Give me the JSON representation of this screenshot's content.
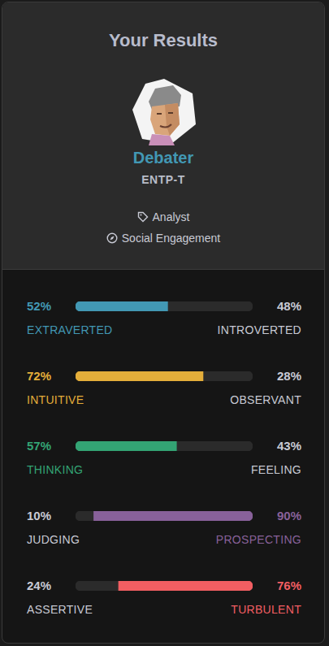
{
  "header": {
    "title": "Your Results",
    "type_name": "Debater",
    "type_code": "ENTP-T",
    "role": "Analyst",
    "strategy": "Social Engagement"
  },
  "chart_data": [
    {
      "type": "bar",
      "orientation": "horizontal",
      "stacked": true,
      "grid": false,
      "tick_labels": false,
      "categories": [
        null
      ],
      "xlim": [
        0,
        100
      ],
      "series": [
        {
          "name": "EXTRAVERTED",
          "color": "#4298b4",
          "values": [
            52
          ],
          "value_labels": [
            "52%"
          ]
        },
        {
          "name": "INTROVERTED",
          "color": "#2b2b2b",
          "values": [
            48
          ],
          "value_labels": [
            "48%"
          ]
        }
      ]
    },
    {
      "type": "bar",
      "orientation": "horizontal",
      "stacked": true,
      "grid": false,
      "tick_labels": false,
      "categories": [
        null
      ],
      "xlim": [
        0,
        100
      ],
      "series": [
        {
          "name": "INTUITIVE",
          "color": "#e4ae3a",
          "values": [
            72
          ],
          "value_labels": [
            "72%"
          ]
        },
        {
          "name": "OBSERVANT",
          "color": "#2b2b2b",
          "values": [
            28
          ],
          "value_labels": [
            "28%"
          ]
        }
      ]
    },
    {
      "type": "bar",
      "orientation": "horizontal",
      "stacked": true,
      "grid": false,
      "tick_labels": false,
      "categories": [
        null
      ],
      "xlim": [
        0,
        100
      ],
      "series": [
        {
          "name": "THINKING",
          "color": "#33a474",
          "values": [
            57
          ],
          "value_labels": [
            "57%"
          ]
        },
        {
          "name": "FEELING",
          "color": "#2b2b2b",
          "values": [
            43
          ],
          "value_labels": [
            "43%"
          ]
        }
      ]
    },
    {
      "type": "bar",
      "orientation": "horizontal",
      "stacked": true,
      "grid": false,
      "tick_labels": false,
      "categories": [
        null
      ],
      "xlim": [
        0,
        100
      ],
      "series": [
        {
          "name": "JUDGING",
          "color": "#2b2b2b",
          "values": [
            10
          ],
          "value_labels": [
            "10%"
          ]
        },
        {
          "name": "PROSPECTING",
          "color": "#88619a",
          "values": [
            90
          ],
          "value_labels": [
            "90%"
          ]
        }
      ]
    },
    {
      "type": "bar",
      "orientation": "horizontal",
      "stacked": true,
      "grid": false,
      "tick_labels": false,
      "categories": [
        null
      ],
      "xlim": [
        0,
        100
      ],
      "series": [
        {
          "name": "ASSERTIVE",
          "color": "#2b2b2b",
          "values": [
            24
          ],
          "value_labels": [
            "24%"
          ]
        },
        {
          "name": "TURBULENT",
          "color": "#f25e62",
          "values": [
            76
          ],
          "value_labels": [
            "76%"
          ]
        }
      ]
    }
  ]
}
